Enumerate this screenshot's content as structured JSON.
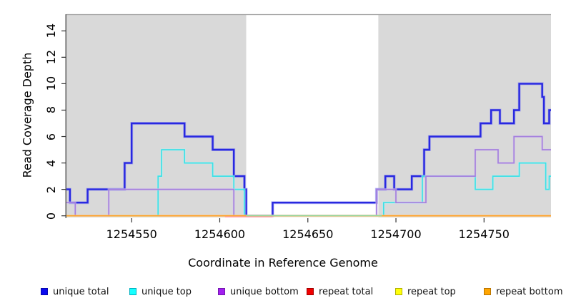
{
  "figure": {
    "x_axis_title": "Coordinate in Reference Genome",
    "y_axis_title": "Read Coverage Depth"
  },
  "chart_data": {
    "type": "line",
    "subtype": "step-coverage-plot",
    "title": "",
    "xlabel": "Coordinate in Reference Genome",
    "ylabel": "Read Coverage Depth",
    "xlim": [
      1254513,
      1254788
    ],
    "ylim": [
      0,
      15.2
    ],
    "x_ticks": [
      1254550,
      1254600,
      1254650,
      1254700,
      1254750
    ],
    "y_ticks": [
      0,
      2,
      4,
      6,
      8,
      10,
      12,
      14
    ],
    "grid": "off",
    "background_color": "#ffffff",
    "shaded_region_color": "#d9d9d9",
    "shaded_regions": [
      {
        "from": 1254513,
        "to": 1254615
      },
      {
        "from": 1254690,
        "to": 1254788
      }
    ],
    "series": [
      {
        "name": "unique total",
        "color": "#2828e0",
        "halo": "#8a8af0",
        "width": 2.4,
        "steps": [
          [
            1254513,
            2
          ],
          [
            1254515,
            1
          ],
          [
            1254525,
            2
          ],
          [
            1254546,
            4
          ],
          [
            1254550,
            7
          ],
          [
            1254580,
            6
          ],
          [
            1254596,
            5
          ],
          [
            1254608,
            3
          ],
          [
            1254614,
            2
          ],
          [
            1254615,
            0
          ],
          [
            1254630,
            1
          ],
          [
            1254689,
            2
          ],
          [
            1254694,
            3
          ],
          [
            1254699,
            2
          ],
          [
            1254709,
            3
          ],
          [
            1254716,
            5
          ],
          [
            1254719,
            6
          ],
          [
            1254748,
            7
          ],
          [
            1254754,
            8
          ],
          [
            1254759,
            7
          ],
          [
            1254767,
            8
          ],
          [
            1254770,
            10
          ],
          [
            1254783,
            9
          ],
          [
            1254784,
            7
          ],
          [
            1254787,
            8
          ]
        ]
      },
      {
        "name": "unique top",
        "color": "#3fe0e6",
        "halo": "#b5f2f4",
        "width": 1.7,
        "steps": [
          [
            1254513,
            0
          ],
          [
            1254565,
            3
          ],
          [
            1254567,
            5
          ],
          [
            1254580,
            4
          ],
          [
            1254596,
            3
          ],
          [
            1254608,
            2
          ],
          [
            1254614,
            0
          ],
          [
            1254693,
            1
          ],
          [
            1254715,
            3
          ],
          [
            1254745,
            2
          ],
          [
            1254755,
            3
          ],
          [
            1254770,
            4
          ],
          [
            1254785,
            2
          ],
          [
            1254787,
            3
          ]
        ]
      },
      {
        "name": "unique bottom",
        "color": "#a580dd",
        "halo": "#d6c4ef",
        "width": 1.7,
        "steps": [
          [
            1254513,
            1
          ],
          [
            1254518,
            0
          ],
          [
            1254537,
            2
          ],
          [
            1254608,
            0
          ],
          [
            1254689,
            2
          ],
          [
            1254700,
            1
          ],
          [
            1254717,
            3
          ],
          [
            1254745,
            5
          ],
          [
            1254758,
            4
          ],
          [
            1254767,
            6
          ],
          [
            1254783,
            5
          ]
        ]
      },
      {
        "name": "repeat total",
        "color": "#ee0000",
        "width": 1.5,
        "steps": [
          [
            1254513,
            0
          ]
        ]
      },
      {
        "name": "repeat top",
        "color": "#ffff00",
        "width": 1.5,
        "steps": [
          [
            1254513,
            0
          ]
        ]
      },
      {
        "name": "repeat bottom",
        "color": "#ffa028",
        "halo": "#ffd9a0",
        "width": 1.7,
        "steps": [
          [
            1254513,
            0
          ]
        ]
      }
    ],
    "zero_line_overlays": [
      {
        "color": "#ffa3b8",
        "from": 1254603,
        "to": 1254630,
        "dy": 1.6,
        "width": 1.4
      },
      {
        "color": "#ffa028",
        "from": 1254513,
        "to": 1254788,
        "dy": 0,
        "width": 1.7
      },
      {
        "color": "#90d9a0",
        "from": 1254615,
        "to": 1254692,
        "dy": -0.2,
        "width": 1.4
      }
    ],
    "legend": {
      "position": "bottom",
      "entries": [
        {
          "label": "unique total",
          "fill": "#0a0aee",
          "border": "#0808b0"
        },
        {
          "label": "unique top",
          "fill": "#15ffff",
          "border": "#00b0c0"
        },
        {
          "label": "unique bottom",
          "fill": "#a21fef",
          "border": "#7317ae"
        },
        {
          "label": "repeat total",
          "fill": "#f00000",
          "border": "#a00000"
        },
        {
          "label": "repeat top",
          "fill": "#ffff0a",
          "border": "#b0b000"
        },
        {
          "label": "repeat bottom",
          "fill": "#ffa500",
          "border": "#b87400"
        }
      ]
    }
  }
}
